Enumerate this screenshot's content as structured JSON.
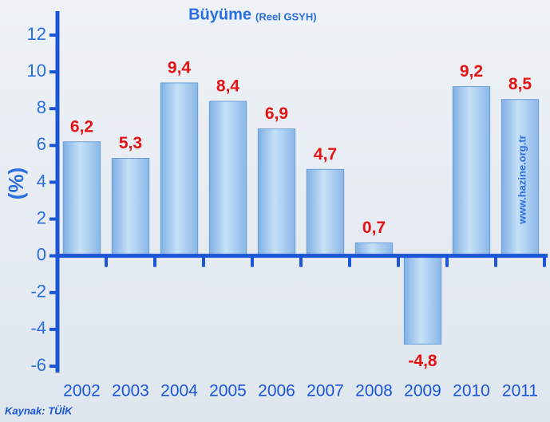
{
  "chart_data": {
    "type": "bar",
    "title": "Büyüme",
    "subtitle": "(Reel GSYH)",
    "y_label": "(%)",
    "source": "Kaynak: TÜİK",
    "watermark": "www.hazine.org.tr",
    "categories": [
      "2002",
      "2003",
      "2004",
      "2005",
      "2006",
      "2007",
      "2008",
      "2009",
      "2010",
      "2011"
    ],
    "values": [
      6.2,
      5.3,
      9.4,
      8.4,
      6.9,
      4.7,
      0.7,
      -4.8,
      9.2,
      8.5
    ],
    "value_labels": [
      "6,2",
      "5,3",
      "9,4",
      "8,4",
      "6,9",
      "4,7",
      "0,7",
      "-4,8",
      "9,2",
      "8,5"
    ],
    "color": "#a8cdf2",
    "ylim": [
      -6,
      12
    ],
    "yticks": [
      -6,
      -4,
      -2,
      0,
      2,
      4,
      6,
      8,
      10,
      12
    ],
    "grid": false
  }
}
